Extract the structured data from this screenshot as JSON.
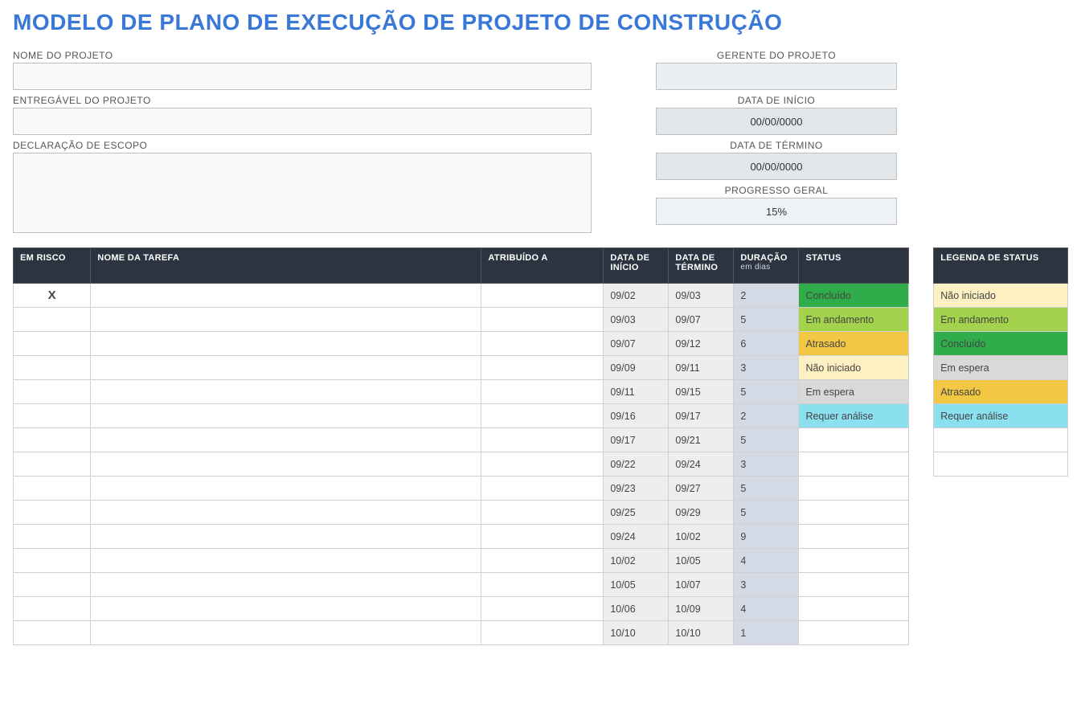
{
  "title": "MODELO DE PLANO DE EXECUÇÃO DE PROJETO DE CONSTRUÇÃO",
  "labels": {
    "project_name": "NOME DO PROJETO",
    "deliverable": "ENTREGÁVEL DO PROJETO",
    "scope": "DECLARAÇÃO DE ESCOPO",
    "manager": "GERENTE DO PROJETO",
    "start_date": "DATA DE INÍCIO",
    "end_date": "DATA DE TÉRMINO",
    "overall_progress": "PROGRESSO GERAL"
  },
  "values": {
    "project_name": "",
    "deliverable": "",
    "scope": "",
    "manager": "",
    "start_date": "00/00/0000",
    "end_date": "00/00/0000",
    "overall_progress": "15%"
  },
  "columns": {
    "risk": "EM RISCO",
    "task": "NOME DA TAREFA",
    "assigned": "ATRIBUÍDO A",
    "start": "DATA DE INÍCIO",
    "end": "DATA DE TÉRMINO",
    "duration": "DURAÇÃO",
    "duration_sub": "em dias",
    "status": "STATUS"
  },
  "legend_title": "LEGENDA DE STATUS",
  "status_colors": {
    "Não iniciado": "#fdf0c2",
    "Em andamento": "#a3d24c",
    "Concluído": "#2fad4a",
    "Em espera": "#d9d9d9",
    "Atrasado": "#f2c744",
    "Requer análise": "#8be0f0",
    "": "#ffffff"
  },
  "legend_items": [
    "Não iniciado",
    "Em andamento",
    "Concluído",
    "Em espera",
    "Atrasado",
    "Requer análise",
    "",
    ""
  ],
  "rows": [
    {
      "risk": "X",
      "task": "",
      "assigned": "",
      "start": "09/02",
      "end": "09/03",
      "dur": "2",
      "status": "Concluído"
    },
    {
      "risk": "",
      "task": "",
      "assigned": "",
      "start": "09/03",
      "end": "09/07",
      "dur": "5",
      "status": "Em andamento"
    },
    {
      "risk": "",
      "task": "",
      "assigned": "",
      "start": "09/07",
      "end": "09/12",
      "dur": "6",
      "status": "Atrasado"
    },
    {
      "risk": "",
      "task": "",
      "assigned": "",
      "start": "09/09",
      "end": "09/11",
      "dur": "3",
      "status": "Não iniciado"
    },
    {
      "risk": "",
      "task": "",
      "assigned": "",
      "start": "09/11",
      "end": "09/15",
      "dur": "5",
      "status": "Em espera"
    },
    {
      "risk": "",
      "task": "",
      "assigned": "",
      "start": "09/16",
      "end": "09/17",
      "dur": "2",
      "status": "Requer análise"
    },
    {
      "risk": "",
      "task": "",
      "assigned": "",
      "start": "09/17",
      "end": "09/21",
      "dur": "5",
      "status": ""
    },
    {
      "risk": "",
      "task": "",
      "assigned": "",
      "start": "09/22",
      "end": "09/24",
      "dur": "3",
      "status": ""
    },
    {
      "risk": "",
      "task": "",
      "assigned": "",
      "start": "09/23",
      "end": "09/27",
      "dur": "5",
      "status": ""
    },
    {
      "risk": "",
      "task": "",
      "assigned": "",
      "start": "09/25",
      "end": "09/29",
      "dur": "5",
      "status": ""
    },
    {
      "risk": "",
      "task": "",
      "assigned": "",
      "start": "09/24",
      "end": "10/02",
      "dur": "9",
      "status": ""
    },
    {
      "risk": "",
      "task": "",
      "assigned": "",
      "start": "10/02",
      "end": "10/05",
      "dur": "4",
      "status": ""
    },
    {
      "risk": "",
      "task": "",
      "assigned": "",
      "start": "10/05",
      "end": "10/07",
      "dur": "3",
      "status": ""
    },
    {
      "risk": "",
      "task": "",
      "assigned": "",
      "start": "10/06",
      "end": "10/09",
      "dur": "4",
      "status": ""
    },
    {
      "risk": "",
      "task": "",
      "assigned": "",
      "start": "10/10",
      "end": "10/10",
      "dur": "1",
      "status": ""
    }
  ]
}
